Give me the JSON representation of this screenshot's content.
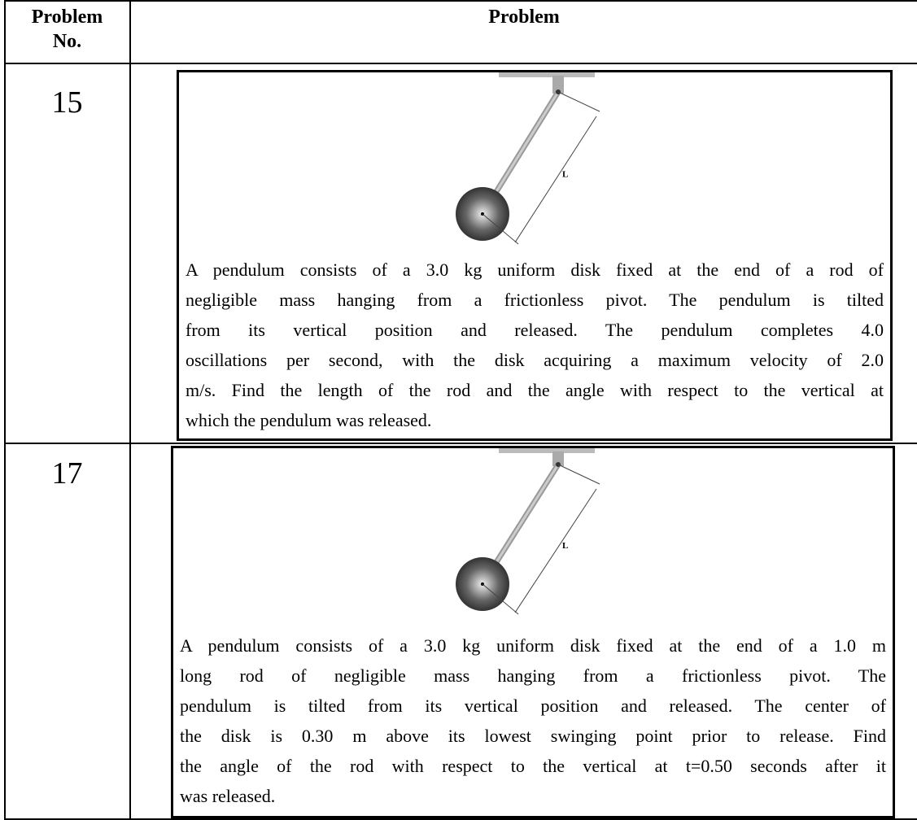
{
  "table": {
    "header": [
      "Problem No.",
      "Problem"
    ],
    "rows": [
      {
        "number": "15",
        "figure_label": "L",
        "text_lines": [
          "A pendulum consists of a 3.0 kg uniform disk fixed at the end of a rod of",
          "negligible mass hanging from a frictionless pivot.  The pendulum is tilted",
          "from its vertical position and released.  The pendulum completes 4.0",
          "oscillations per second, with the disk acquiring a maximum velocity of 2.0",
          "m/s.  Find the length of the rod and the angle with respect to the vertical at",
          "which the pendulum was released."
        ]
      },
      {
        "number": "17",
        "figure_label": "L",
        "text_lines": [
          "A pendulum consists of a 3.0 kg uniform disk fixed at the end of a 1.0 m",
          "long rod of negligible mass hanging from a frictionless pivot.  The",
          "pendulum is tilted from its vertical position and released.  The center of",
          "the disk is 0.30 m above its lowest swinging point prior to release.  Find",
          "the angle of the rod with respect to the vertical at t=0.50 seconds after it",
          "was released."
        ]
      }
    ]
  }
}
